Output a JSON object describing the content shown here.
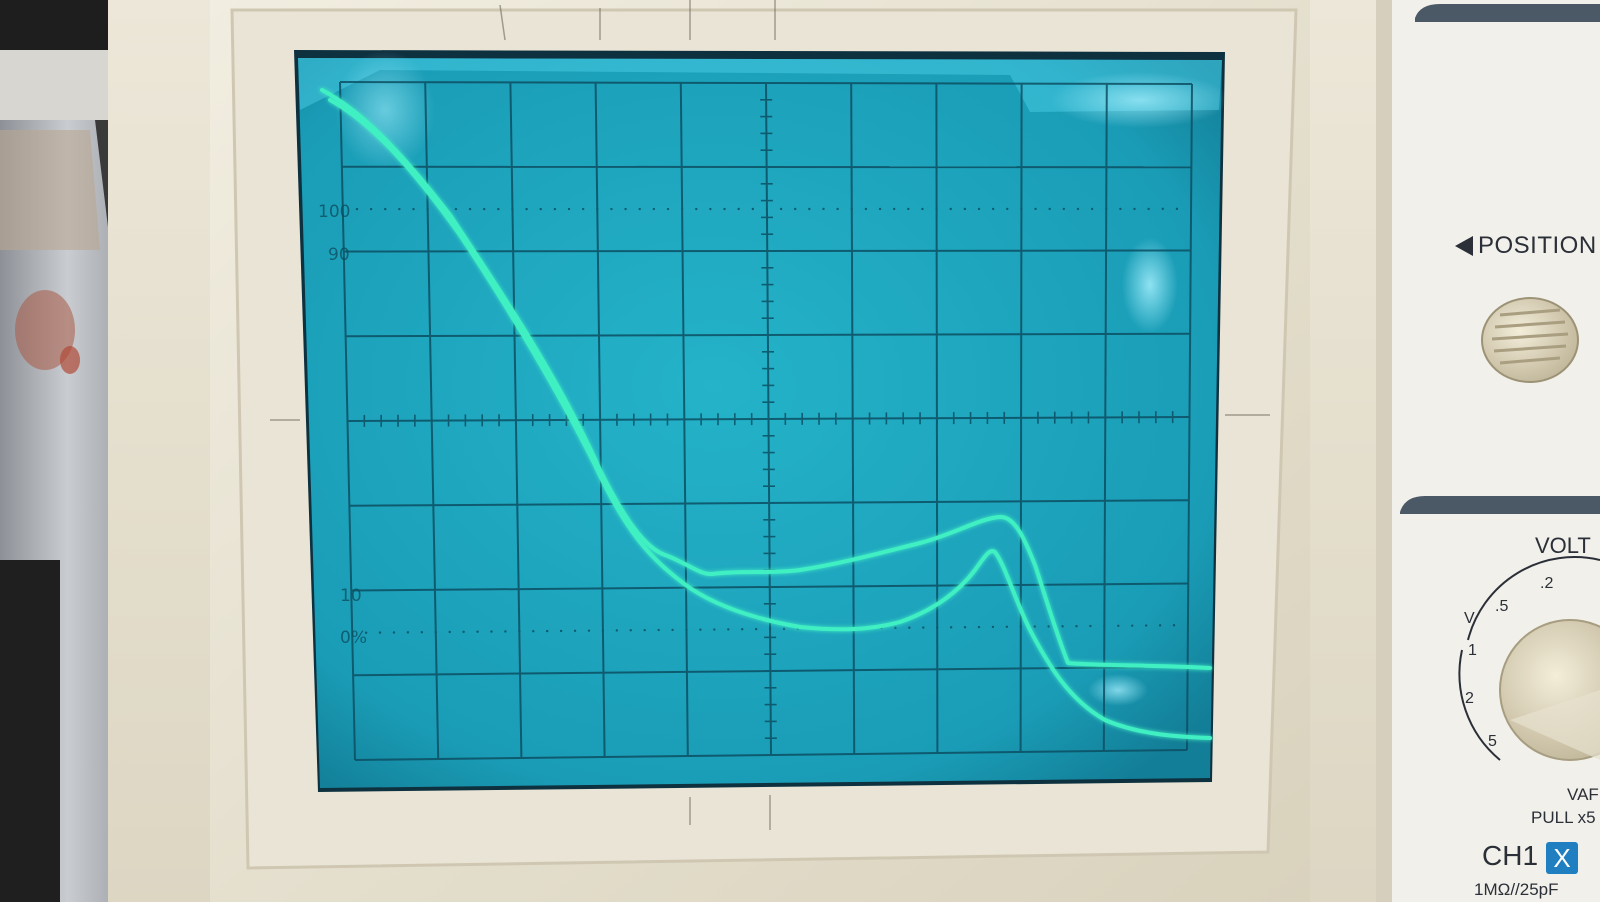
{
  "panel": {
    "position_label": "POSITION",
    "volts_label": "VOLT",
    "var_label": "VAF",
    "pull_label": "PULL x5",
    "channel_label": "CH1",
    "channel_badge": "X",
    "impedance_label": "1MΩ//25pF",
    "volts_scale": [
      "V",
      ".5",
      ".2",
      "1",
      "2",
      "5"
    ]
  },
  "screen": {
    "graticule_labels": [
      "100",
      "90",
      "10",
      "0%"
    ],
    "phosphor_color": "#3ff0c2",
    "screen_color": "#1fa9c1",
    "bezel_color": "#e8e3d3"
  },
  "traces": {
    "trace_count": 2
  }
}
